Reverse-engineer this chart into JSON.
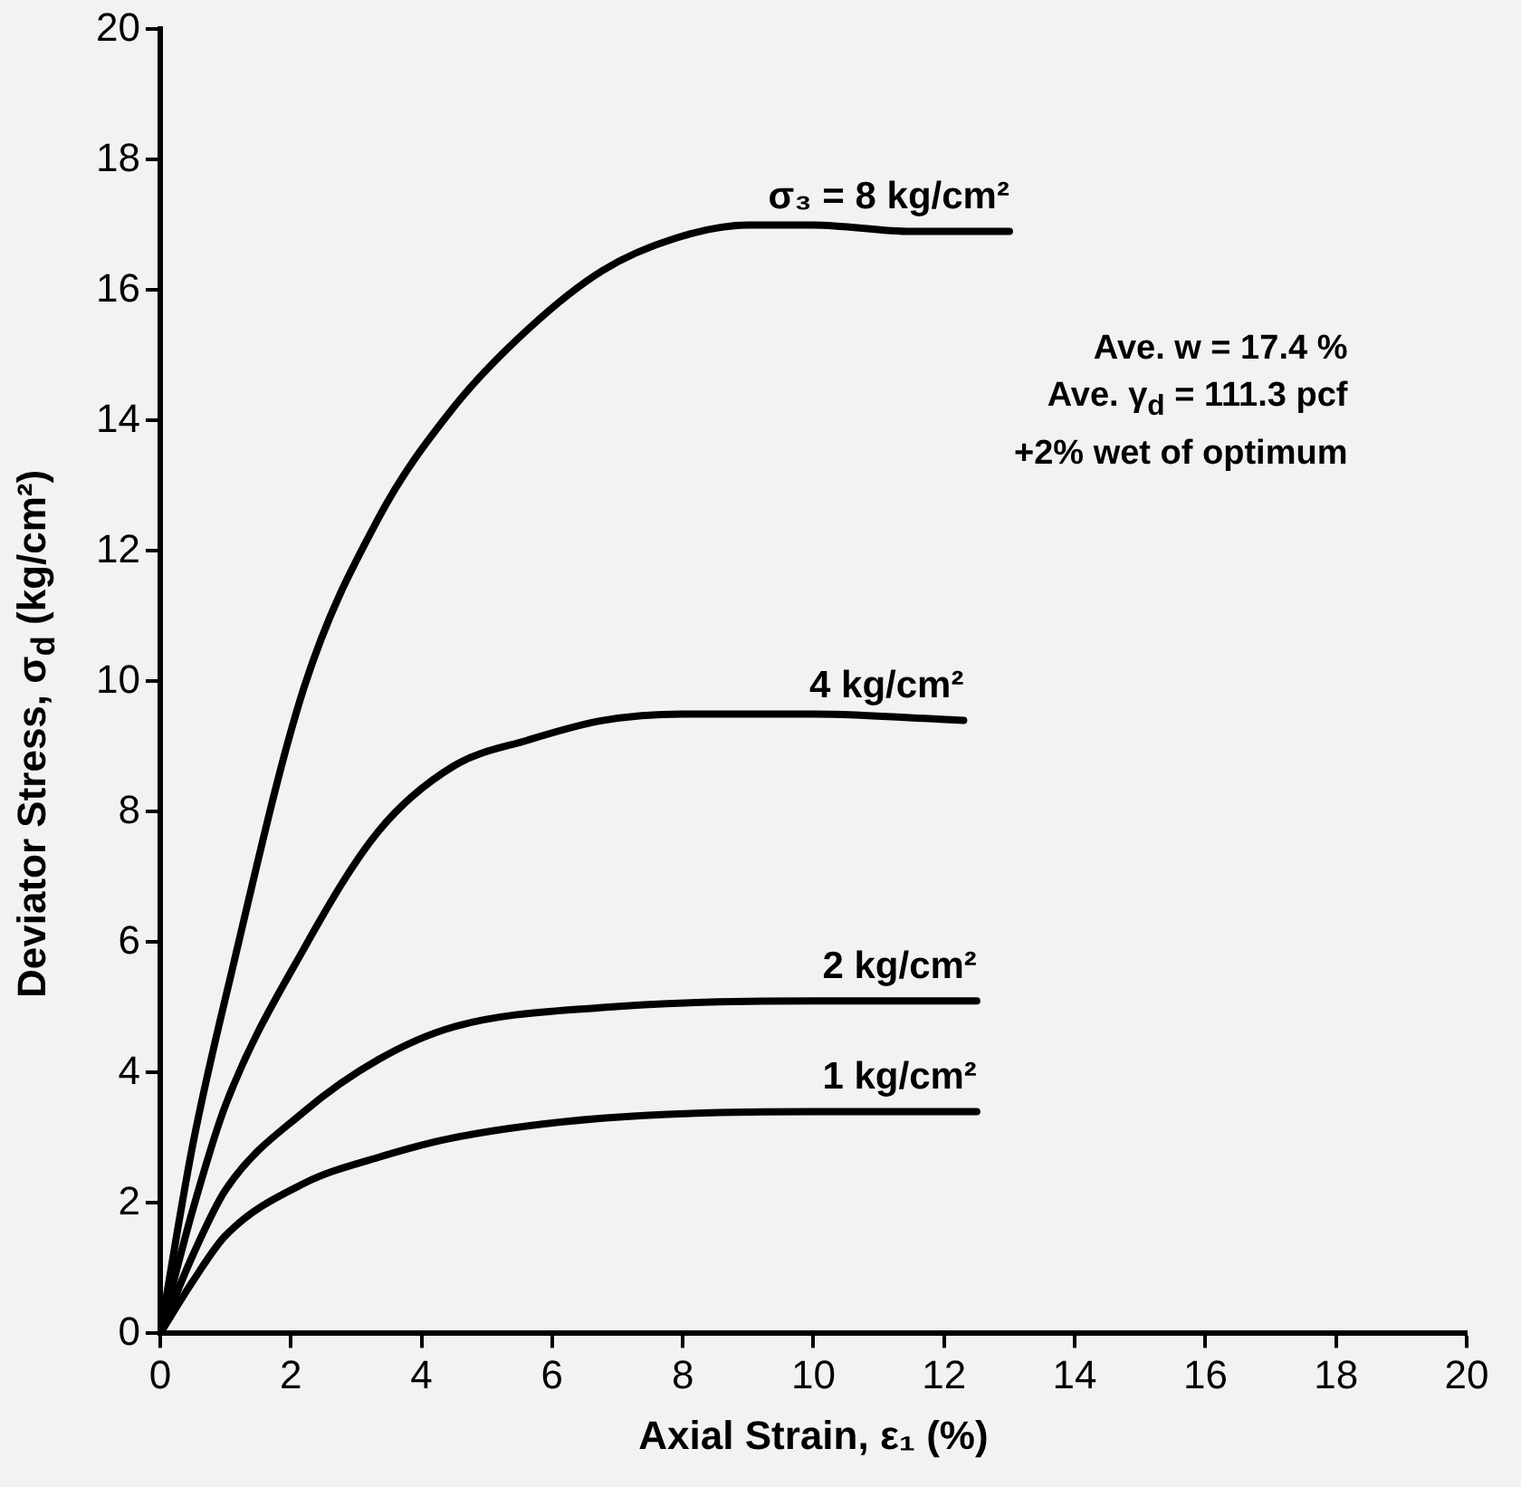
{
  "chart_data": {
    "type": "line",
    "xlabel": "Axial Strain, ε₁ (%)",
    "ylabel": "Deviator Stress, σ$_{d}$ (kg/cm²)",
    "xlim": [
      0,
      20
    ],
    "ylim": [
      0,
      20
    ],
    "xticks": [
      0,
      2,
      4,
      6,
      8,
      10,
      12,
      14,
      16,
      18,
      20
    ],
    "yticks": [
      0,
      2,
      4,
      6,
      8,
      10,
      12,
      14,
      16,
      18,
      20
    ],
    "grid": false,
    "legend": false,
    "marker": "none",
    "line_style": "solid",
    "annotations": [
      "Ave. w = 17.4 %",
      "Ave. γ$_{d}$ = 111.3 pcf",
      "+2% wet of optimum"
    ],
    "series": [
      {
        "name": "σ₃ = 8 kg/cm²",
        "color": "#000000",
        "x": [
          0,
          0.5,
          1.06,
          2.2,
          3.34,
          4.49,
          5.63,
          6.77,
          7.9,
          9,
          10,
          11.5,
          13
        ],
        "values": [
          0,
          2.9,
          5.4,
          9.9,
          12.5,
          14.2,
          15.4,
          16.3,
          16.8,
          17,
          17,
          16.9,
          16.9
        ]
      },
      {
        "name": "4 kg/cm²",
        "color": "#000000",
        "x": [
          0,
          0.5,
          1,
          2.2,
          3.34,
          4.49,
          5.63,
          6.77,
          8,
          10,
          12.3
        ],
        "values": [
          0,
          1.9,
          3.5,
          5.9,
          7.7,
          8.7,
          9.1,
          9.4,
          9.5,
          9.5,
          9.4
        ]
      },
      {
        "name": "2 kg/cm²",
        "color": "#000000",
        "x": [
          0,
          0.5,
          1,
          2.2,
          3.34,
          4.49,
          6.77,
          10,
          12.5
        ],
        "values": [
          0,
          1.2,
          2.2,
          3.4,
          4.2,
          4.7,
          5,
          5.1,
          5.1
        ]
      },
      {
        "name": "1 kg/cm²",
        "color": "#000000",
        "x": [
          0,
          0.5,
          1,
          2.2,
          3.34,
          4.49,
          6.77,
          10,
          12.5
        ],
        "values": [
          0,
          0.8,
          1.5,
          2.3,
          2.7,
          3,
          3.3,
          3.4,
          3.4
        ]
      }
    ]
  }
}
